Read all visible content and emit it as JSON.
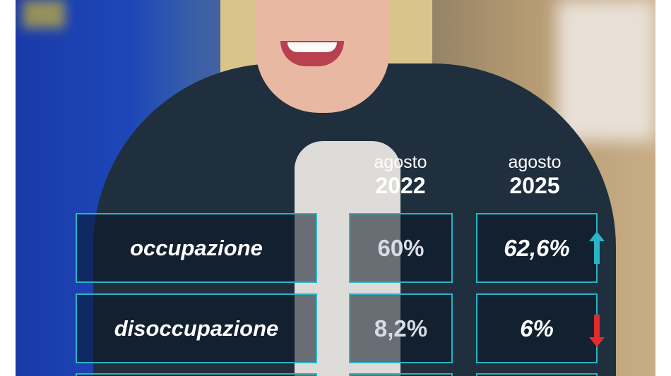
{
  "columns": [
    {
      "month": "agosto",
      "year": "2022"
    },
    {
      "month": "agosto",
      "year": "2025"
    }
  ],
  "rows": [
    {
      "label": "occupazione",
      "v2022": "60%",
      "v2025": "62,6%",
      "trend": "up",
      "trend_color": "#2bb3c6"
    },
    {
      "label": "disoccupazione",
      "v2022": "8,2%",
      "v2025": "6%",
      "trend": "down",
      "trend_color": "#e32b2b"
    }
  ],
  "colors": {
    "box_border": "#2bb3c6"
  }
}
